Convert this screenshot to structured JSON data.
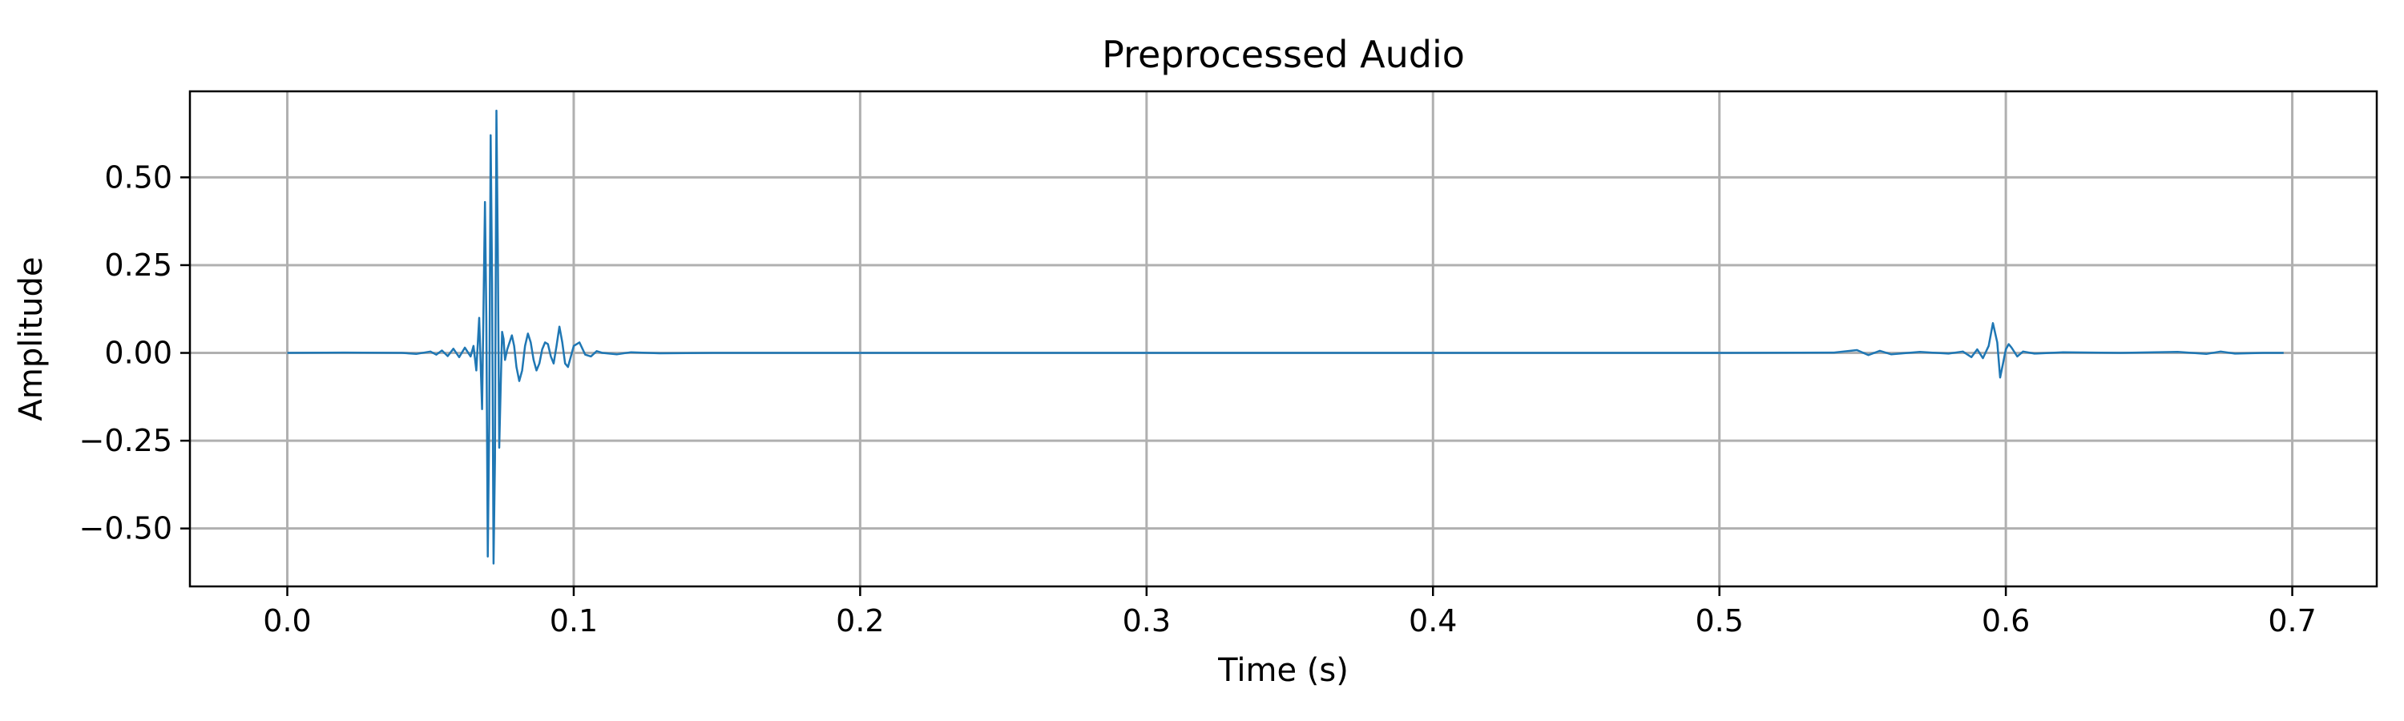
{
  "chart_data": {
    "type": "line",
    "title": "Preprocessed Audio",
    "xlabel": "Time (s)",
    "ylabel": "Amplitude",
    "xlim": [
      -0.034,
      0.7295
    ],
    "ylim": [
      -0.665,
      0.745
    ],
    "xticks": [
      0.0,
      0.1,
      0.2,
      0.3,
      0.4,
      0.5,
      0.6,
      0.7
    ],
    "xtick_labels": [
      "0.0",
      "0.1",
      "0.2",
      "0.3",
      "0.4",
      "0.5",
      "0.6",
      "0.7"
    ],
    "yticks": [
      -0.5,
      -0.25,
      0.0,
      0.25,
      0.5
    ],
    "ytick_labels": [
      "−0.50",
      "−0.25",
      "0.00",
      "0.25",
      "0.50"
    ],
    "grid": true,
    "line_color": "#1f77b4",
    "series": [
      {
        "x": [
          0.0,
          0.02,
          0.04,
          0.045,
          0.05,
          0.052,
          0.054,
          0.056,
          0.058,
          0.06,
          0.062,
          0.064,
          0.065,
          0.066,
          0.067,
          0.068,
          0.069,
          0.0695,
          0.07,
          0.0705,
          0.071,
          0.0715,
          0.072,
          0.0725,
          0.073,
          0.0735,
          0.074,
          0.0745,
          0.075,
          0.0755,
          0.076,
          0.0768,
          0.0776,
          0.0784,
          0.0792,
          0.08,
          0.081,
          0.082,
          0.083,
          0.084,
          0.085,
          0.086,
          0.087,
          0.088,
          0.089,
          0.09,
          0.091,
          0.092,
          0.093,
          0.094,
          0.095,
          0.096,
          0.097,
          0.098,
          0.099,
          0.1,
          0.102,
          0.104,
          0.106,
          0.108,
          0.11,
          0.115,
          0.12,
          0.13,
          0.15,
          0.2,
          0.3,
          0.4,
          0.5,
          0.54,
          0.548,
          0.552,
          0.556,
          0.56,
          0.57,
          0.58,
          0.585,
          0.588,
          0.59,
          0.592,
          0.594,
          0.5955,
          0.597,
          0.598,
          0.599,
          0.6,
          0.601,
          0.602,
          0.604,
          0.606,
          0.61,
          0.62,
          0.64,
          0.66,
          0.67,
          0.675,
          0.68,
          0.69,
          0.697
        ],
        "y": [
          0.0,
          0.001,
          0.0,
          -0.003,
          0.004,
          -0.005,
          0.007,
          -0.009,
          0.012,
          -0.012,
          0.015,
          -0.01,
          0.02,
          -0.05,
          0.1,
          -0.16,
          0.43,
          0.1,
          -0.58,
          -0.2,
          0.62,
          0.2,
          -0.6,
          -0.3,
          0.69,
          0.3,
          -0.27,
          -0.1,
          0.06,
          0.04,
          -0.02,
          0.01,
          0.03,
          0.05,
          0.02,
          -0.04,
          -0.08,
          -0.05,
          0.02,
          0.055,
          0.03,
          -0.02,
          -0.05,
          -0.03,
          0.01,
          0.03,
          0.025,
          -0.01,
          -0.03,
          0.02,
          0.075,
          0.03,
          -0.03,
          -0.04,
          -0.01,
          0.02,
          0.03,
          -0.005,
          -0.01,
          0.005,
          0.0,
          -0.004,
          0.002,
          -0.001,
          0.0,
          0.0,
          0.0,
          0.0,
          0.0,
          0.001,
          0.008,
          -0.006,
          0.006,
          -0.004,
          0.003,
          -0.002,
          0.004,
          -0.012,
          0.01,
          -0.015,
          0.02,
          0.085,
          0.03,
          -0.07,
          -0.03,
          0.01,
          0.025,
          0.015,
          -0.01,
          0.004,
          -0.002,
          0.002,
          0.0,
          0.003,
          -0.003,
          0.004,
          -0.002,
          0.0,
          0.0
        ]
      }
    ]
  }
}
